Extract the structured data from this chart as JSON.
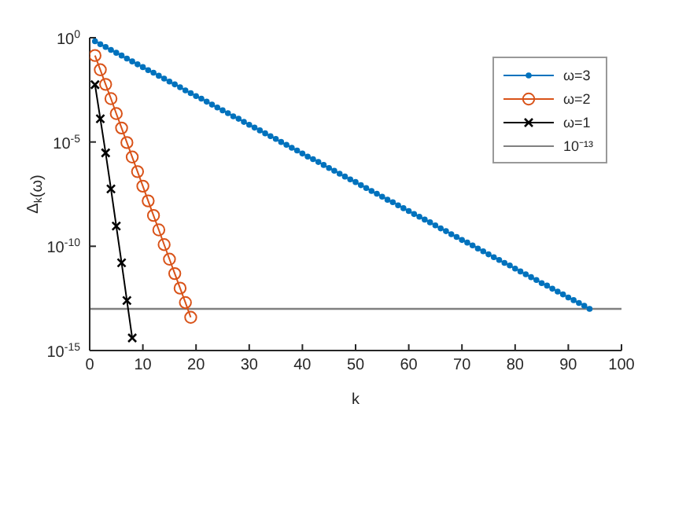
{
  "chart_data": {
    "type": "line",
    "xlabel": "k",
    "ylabel": "Δ$_{k}$(ω)",
    "log": "y",
    "xlim": [
      0,
      100
    ],
    "xticks": [
      0,
      10,
      20,
      30,
      40,
      50,
      60,
      70,
      80,
      90,
      100
    ],
    "ylim": [
      1e-15,
      1
    ],
    "yticks": [
      {
        "value": 1,
        "label": "10$^{0}$"
      },
      {
        "value": 1e-05,
        "label": "10$^{-5}$"
      },
      {
        "value": 1e-10,
        "label": "10$^{-10}$"
      },
      {
        "value": 1e-15,
        "label": "10$^{-15}$"
      }
    ],
    "legend": "top right",
    "line_style": "solid",
    "series": [
      {
        "name": "ω=3",
        "color": "#0072bd",
        "marker": "circle",
        "x": [
          1,
          2,
          3,
          4,
          5,
          6,
          7,
          8,
          9,
          10,
          11,
          12,
          13,
          14,
          15,
          16,
          17,
          18,
          19,
          20,
          21,
          22,
          23,
          24,
          25,
          26,
          27,
          28,
          29,
          30,
          31,
          32,
          33,
          34,
          35,
          36,
          37,
          38,
          39,
          40,
          41,
          42,
          43,
          44,
          45,
          46,
          47,
          48,
          49,
          50,
          51,
          52,
          53,
          54,
          55,
          56,
          57,
          58,
          59,
          60,
          61,
          62,
          63,
          64,
          65,
          66,
          67,
          68,
          69,
          70,
          71,
          72,
          73,
          74,
          75,
          76,
          77,
          78,
          79,
          80,
          81,
          82,
          83,
          84,
          85,
          86,
          87,
          88,
          89,
          90,
          91,
          92,
          93,
          94
        ],
        "values": [
          0.68,
          0.49,
          0.36,
          0.26,
          0.19,
          0.14,
          0.1,
          0.073,
          0.053,
          0.039,
          0.028,
          0.021,
          0.015,
          0.011,
          0.0079,
          0.0058,
          0.0042,
          0.003,
          0.0022,
          0.0016,
          0.0012,
          0.00086,
          0.00062,
          0.00045,
          0.00033,
          0.00024,
          0.00017,
          0.00013,
          9.2e-05,
          6.7e-05,
          4.9e-05,
          3.6e-05,
          2.6e-05,
          1.9e-05,
          1.4e-05,
          1e-05,
          7.3e-06,
          5.3e-06,
          3.9e-06,
          2.8e-06,
          2e-06,
          1.5e-06,
          1.1e-06,
          7.9e-07,
          5.7e-07,
          4.2e-07,
          3e-07,
          2.2e-07,
          1.6e-07,
          1.2e-07,
          8.5e-08,
          6.2e-08,
          4.5e-08,
          3.3e-08,
          2.4e-08,
          1.7e-08,
          1.3e-08,
          9.2e-09,
          6.7e-09,
          4.9e-09,
          3.5e-09,
          2.6e-09,
          1.9e-09,
          1.4e-09,
          1e-09,
          7.2e-10,
          5.3e-10,
          3.8e-10,
          2.8e-10,
          2e-10,
          1.5e-10,
          1.1e-10,
          7.8e-11,
          5.7e-11,
          4.1e-11,
          3e-11,
          2.2e-11,
          1.6e-11,
          1.2e-11,
          8.5e-12,
          6.2e-12,
          4.5e-12,
          3.3e-12,
          2.4e-12,
          1.7e-12,
          1.3e-12,
          9.2e-13,
          6.7e-13,
          4.9e-13,
          3.5e-13,
          2.6e-13,
          1.9e-13,
          1.4e-13,
          1e-13
        ]
      },
      {
        "name": "ω=2",
        "color": "#d95319",
        "marker": "circle",
        "x": [
          1,
          2,
          3,
          4,
          5,
          6,
          7,
          8,
          9,
          10,
          11,
          12,
          13,
          14,
          15,
          16,
          17,
          18,
          19
        ],
        "values": [
          0.14,
          0.029,
          0.0058,
          0.0012,
          0.00023,
          4.7e-05,
          9.4e-06,
          1.9e-06,
          3.8e-07,
          7.6e-08,
          1.5e-08,
          3e-09,
          6.1e-10,
          1.2e-10,
          2.4e-11,
          4.9e-12,
          9.8e-13,
          2e-13,
          3.9e-14
        ]
      },
      {
        "name": "ω=1",
        "color": "#000000",
        "marker": "cross",
        "x": [
          1,
          2,
          3,
          4,
          5,
          6,
          7,
          8
        ],
        "values": [
          0.0056,
          0.00013,
          3e-06,
          5.6e-08,
          9.3e-10,
          1.6e-11,
          2.5e-13,
          4e-15
        ]
      }
    ],
    "ref_lines": [
      {
        "axis": "y",
        "value": 1e-13,
        "label": "10⁻¹³",
        "color": "#808080"
      }
    ]
  }
}
